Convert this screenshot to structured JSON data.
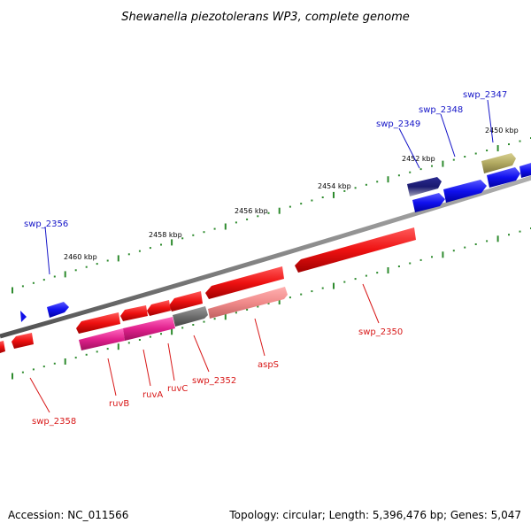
{
  "title": "Shewanella piezotolerans WP3, complete genome",
  "accession": "Accession: NC_011566",
  "topology": "Topology: circular; Length: 5,396,476 bp; Genes: 5,047",
  "kbp_labels": [
    "2450 kbp",
    "2452 kbp",
    "2454 kbp",
    "2456 kbp",
    "2458 kbp",
    "2460 kbp"
  ],
  "gene_labels": {
    "swp_2347": "swp_2347",
    "swp_2348": "swp_2348",
    "swp_2349": "swp_2349",
    "swp_2350": "swp_2350",
    "swp_2352": "swp_2352",
    "swp_2356": "swp_2356",
    "swp_2358": "swp_2358",
    "aspS": "aspS",
    "ruvB": "ruvB",
    "ruvA": "ruvA",
    "ruvC": "ruvC"
  },
  "colors": {
    "forward_gene": "#1010e8",
    "reverse_gene": "#e81010",
    "ruv_gene": "#e0208c",
    "aspS_gene": "#f08a8a",
    "olive_gene": "#b0a860",
    "navy_gene": "#1a1a70",
    "gray_gene": "#6e6e6e",
    "backbone": "#888888",
    "tick": "#2e8b2e"
  }
}
